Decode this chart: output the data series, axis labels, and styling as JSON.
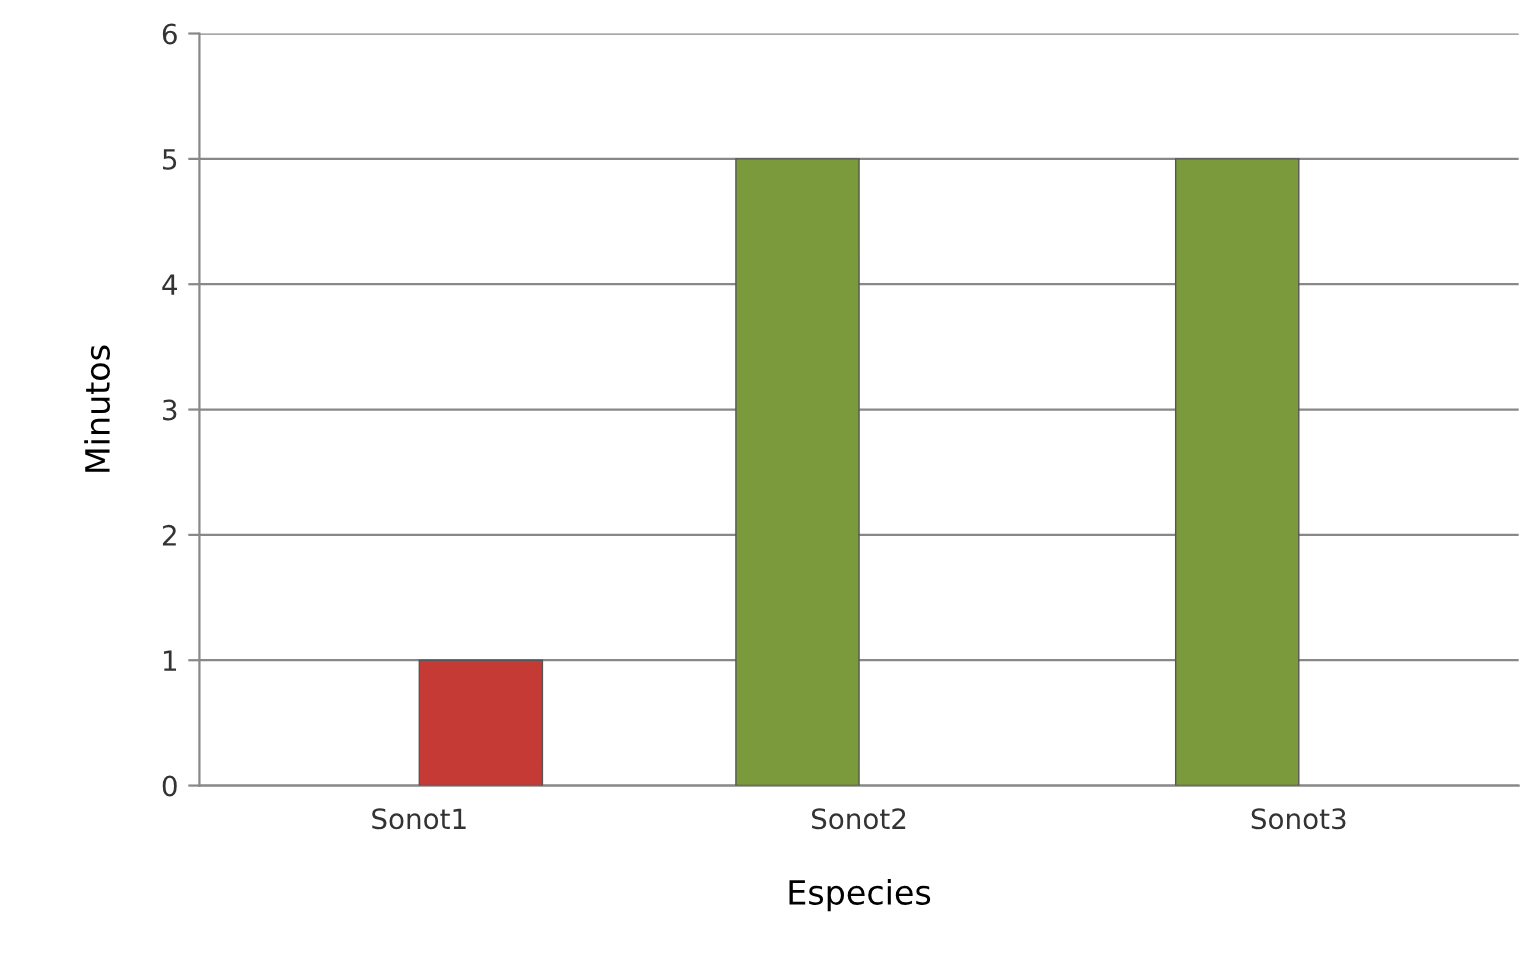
{
  "chart_data": {
    "type": "bar",
    "xlabel": "Especies",
    "ylabel": "Minutos",
    "categories": [
      "Sonot1",
      "Sonot2",
      "Sonot3"
    ],
    "series": [
      {
        "color": "#7a9a3c",
        "values": [
          null,
          5,
          5
        ]
      },
      {
        "color": "#c63a36",
        "values": [
          1,
          null,
          null
        ]
      }
    ],
    "ylim": [
      0,
      6
    ],
    "yticks": [
      0,
      1,
      2,
      3,
      4,
      5,
      6
    ],
    "grid": "y",
    "legend": false
  }
}
